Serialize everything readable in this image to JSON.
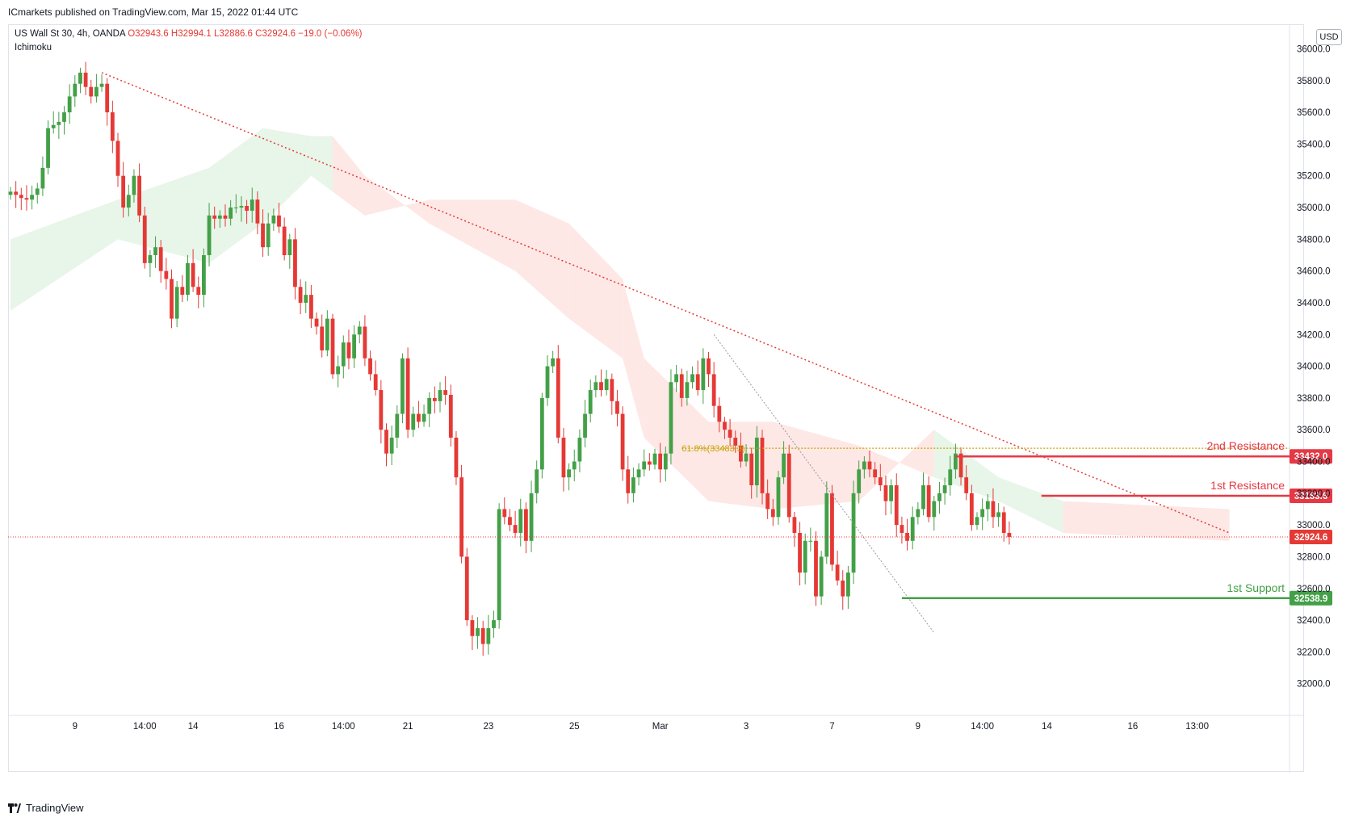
{
  "header": {
    "publisher_line": "ICmarkets published on TradingView.com, Mar 15, 2022 01:44 UTC"
  },
  "legend": {
    "symbol": "US Wall St 30, 4h, OANDA",
    "open": "O32943.6",
    "high": "H32994.1",
    "low": "L32886.6",
    "close": "C32924.6",
    "change": "−19.0 (−0.06%)",
    "indicator": "Ichimoku"
  },
  "currency": "USD",
  "footer": {
    "brand": "TradingView"
  },
  "colors": {
    "up": "#43a047",
    "down": "#e53935",
    "cloud_green": "#e8f5e9",
    "cloud_red": "#fde8e6",
    "resistance": "#e53945",
    "support": "#43a047",
    "fib": "#c8a200",
    "trendline": "#e53935"
  },
  "chart_data": {
    "type": "candlestick",
    "ylim": [
      31800,
      36150
    ],
    "y_ticks": [
      32000,
      32200,
      32400,
      32600,
      32800,
      33000,
      33200,
      33400,
      33600,
      33800,
      34000,
      34200,
      34400,
      34600,
      34800,
      35000,
      35200,
      35400,
      35600,
      35800,
      36000
    ],
    "y_tick_labels": [
      "32000.0",
      "32200.0",
      "32400.0",
      "32600.0",
      "32800.0",
      "33000.0",
      "33200.0",
      "33400.0",
      "33600.0",
      "33800.0",
      "34000.0",
      "34200.0",
      "34400.0",
      "34600.0",
      "34800.0",
      "35000.0",
      "35200.0",
      "35400.0",
      "35600.0",
      "35800.0",
      "36000.0"
    ],
    "x_labels": [
      {
        "label": "9",
        "bar": 12
      },
      {
        "label": "14:00",
        "bar": 25
      },
      {
        "label": "14",
        "bar": 34
      },
      {
        "label": "16",
        "bar": 50
      },
      {
        "label": "14:00",
        "bar": 62
      },
      {
        "label": "21",
        "bar": 74
      },
      {
        "label": "23",
        "bar": 89
      },
      {
        "label": "25",
        "bar": 105
      },
      {
        "label": "Mar",
        "bar": 121
      },
      {
        "label": "3",
        "bar": 137
      },
      {
        "label": "7",
        "bar": 153
      },
      {
        "label": "9",
        "bar": 169
      },
      {
        "label": "14:00",
        "bar": 181
      },
      {
        "label": "14",
        "bar": 193
      },
      {
        "label": "16",
        "bar": 209
      },
      {
        "label": "13:00",
        "bar": 221
      }
    ],
    "closes": [
      35100,
      35080,
      35060,
      35050,
      35080,
      35120,
      35250,
      35500,
      35520,
      35540,
      35600,
      35700,
      35780,
      35850,
      35760,
      35700,
      35760,
      35780,
      35600,
      35420,
      35200,
      35000,
      35080,
      35200,
      34950,
      34650,
      34700,
      34750,
      34600,
      34550,
      34300,
      34500,
      34450,
      34650,
      34500,
      34450,
      34700,
      34950,
      34930,
      34950,
      34930,
      35000,
      35000,
      35010,
      34980,
      35050,
      34900,
      34750,
      34900,
      34950,
      34880,
      34700,
      34800,
      34500,
      34400,
      34450,
      34300,
      34250,
      34100,
      34300,
      33950,
      34000,
      34150,
      34050,
      34200,
      34250,
      34050,
      33950,
      33850,
      33600,
      33450,
      33550,
      33700,
      34050,
      33600,
      33700,
      33650,
      33700,
      33800,
      33780,
      33850,
      33820,
      33550,
      33300,
      32800,
      32400,
      32300,
      32350,
      32250,
      32350,
      32400,
      33100,
      33050,
      33000,
      32950,
      33100,
      32900,
      33200,
      33350,
      33800,
      34000,
      34050,
      33550,
      33300,
      33350,
      33400,
      33550,
      33700,
      33850,
      33900,
      33850,
      33920,
      33780,
      33700,
      33350,
      33200,
      33300,
      33350,
      33400,
      33380,
      33450,
      33350,
      33450,
      33900,
      33950,
      33800,
      33900,
      33950,
      33850,
      34050,
      33950,
      33750,
      33650,
      33600,
      33550,
      33500,
      33400,
      33450,
      33250,
      33550,
      33200,
      33100,
      33050,
      33300,
      33450,
      33050,
      32950,
      32700,
      32900,
      32900,
      32550,
      32800,
      33200,
      32750,
      32650,
      32550,
      32700,
      33200,
      33350,
      33400,
      33350,
      33300,
      33250,
      33150,
      33250,
      33000,
      32950,
      32900,
      33050,
      33100,
      33250,
      33050,
      33150,
      33200,
      33250,
      33350,
      33450,
      33300,
      33200,
      33000,
      33050,
      33100,
      33150,
      33050,
      33080,
      32950,
      32924.6
    ],
    "ichimoku_cloud": [
      {
        "bar": 0,
        "a": 34800,
        "b": 34350,
        "state": "green"
      },
      {
        "bar": 20,
        "a": 35050,
        "b": 34800,
        "state": "green"
      },
      {
        "bar": 37,
        "a": 35250,
        "b": 34650,
        "state": "green"
      },
      {
        "bar": 47,
        "a": 35500,
        "b": 34900,
        "state": "green"
      },
      {
        "bar": 56,
        "a": 35450,
        "b": 35200,
        "state": "green"
      },
      {
        "bar": 60,
        "a": 35450,
        "b": 35100,
        "state": "red"
      },
      {
        "bar": 66,
        "a": 35200,
        "b": 34950,
        "state": "red"
      },
      {
        "bar": 78,
        "a": 34900,
        "b": 35050,
        "state": "red"
      },
      {
        "bar": 94,
        "a": 34600,
        "b": 35050,
        "state": "red"
      },
      {
        "bar": 104,
        "a": 34300,
        "b": 34900,
        "state": "red"
      },
      {
        "bar": 114,
        "a": 34050,
        "b": 34550,
        "state": "red"
      },
      {
        "bar": 118,
        "a": 33550,
        "b": 34050,
        "state": "red"
      },
      {
        "bar": 130,
        "a": 33150,
        "b": 33650,
        "state": "red"
      },
      {
        "bar": 142,
        "a": 33100,
        "b": 33650,
        "state": "red"
      },
      {
        "bar": 158,
        "a": 33150,
        "b": 33500,
        "state": "red"
      },
      {
        "bar": 172,
        "a": 33600,
        "b": 33300,
        "state": "green"
      },
      {
        "bar": 184,
        "a": 33300,
        "b": 33150,
        "state": "green"
      },
      {
        "bar": 196,
        "a": 33150,
        "b": 32950,
        "state": "red"
      },
      {
        "bar": 227,
        "a": 33100,
        "b": 32900,
        "state": "red"
      }
    ],
    "trendline": {
      "from_bar": 17,
      "from_price": 35850,
      "to_bar": 227,
      "to_price": 32950
    },
    "fib_line": {
      "label": "61.8%(33483.3)",
      "price": 33483.3,
      "from_bar": 125,
      "to_bar": 227
    },
    "minor_trend": {
      "from_bar": 131,
      "from_price": 34200,
      "to_bar": 172,
      "to_price": 32320
    },
    "levels": [
      {
        "name": "2nd Resistance",
        "price": 33432.0,
        "label": "33432.0",
        "from_bar": 176,
        "kind": "resistance"
      },
      {
        "name": "1st Resistance",
        "price": 33183.6,
        "label": "33183.6",
        "from_bar": 192,
        "kind": "resistance"
      },
      {
        "name": "1st Support",
        "price": 32538.9,
        "label": "32538.9",
        "from_bar": 166,
        "kind": "support"
      }
    ],
    "last_price": {
      "price": 32924.6,
      "label": "32924.6"
    }
  }
}
